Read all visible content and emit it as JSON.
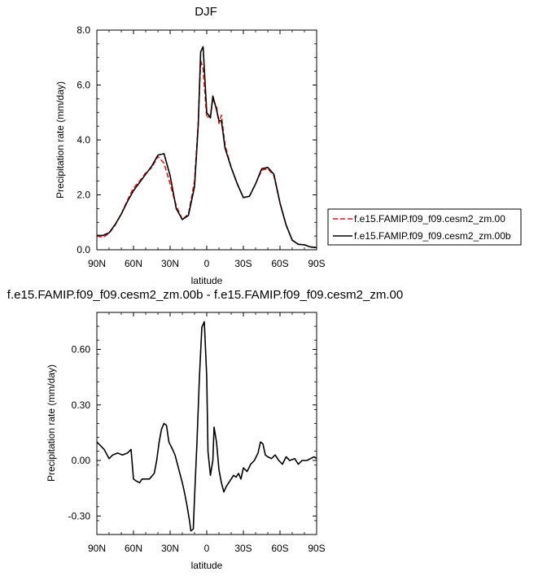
{
  "chart_data": [
    {
      "type": "line",
      "title": "DJF",
      "xlabel": "latitude",
      "ylabel": "Precipitation rate (mm/day)",
      "xlim": [
        90,
        -90
      ],
      "ylim": [
        0,
        8
      ],
      "xticks": [
        90,
        60,
        30,
        0,
        -30,
        -60,
        -90
      ],
      "xtick_labels": [
        "90N",
        "60N",
        "30N",
        "0",
        "30S",
        "60S",
        "90S"
      ],
      "yticks": [
        0,
        2,
        4,
        6,
        8
      ],
      "ytick_labels": [
        "0.0",
        "2.0",
        "4.0",
        "6.0",
        "8.0"
      ],
      "grid": false,
      "legend_position": "right",
      "series": [
        {
          "name": "f.e15.FAMIP.f09_f09.cesm2_zm.00",
          "color": "#e8141a",
          "dash": "dashed",
          "x": [
            90,
            85,
            80,
            75,
            70,
            65,
            60,
            55,
            50,
            45,
            40,
            35,
            30,
            25,
            20,
            15,
            10,
            7,
            5,
            3,
            0,
            -3,
            -5,
            -8,
            -10,
            -12,
            -15,
            -20,
            -25,
            -30,
            -35,
            -40,
            -45,
            -50,
            -55,
            -60,
            -65,
            -70,
            -75,
            -80,
            -85,
            -90
          ],
          "y": [
            0.5,
            0.45,
            0.6,
            0.9,
            1.3,
            1.8,
            2.25,
            2.5,
            2.8,
            3.0,
            3.4,
            3.15,
            2.4,
            1.6,
            1.1,
            1.3,
            2.5,
            4.6,
            6.9,
            6.6,
            4.8,
            4.9,
            5.5,
            5.2,
            4.6,
            4.9,
            3.8,
            3.0,
            2.4,
            1.9,
            1.95,
            2.4,
            2.9,
            2.95,
            2.7,
            1.7,
            0.9,
            0.35,
            0.2,
            0.18,
            0.1,
            0.08
          ]
        },
        {
          "name": "f.e15.FAMIP.f09_f09.cesm2_zm.00b",
          "color": "#000000",
          "dash": "solid",
          "x": [
            90,
            85,
            80,
            75,
            70,
            65,
            60,
            55,
            50,
            45,
            40,
            35,
            30,
            25,
            20,
            15,
            10,
            7,
            5,
            3,
            0,
            -3,
            -5,
            -8,
            -10,
            -12,
            -15,
            -20,
            -25,
            -30,
            -35,
            -40,
            -45,
            -50,
            -55,
            -60,
            -65,
            -70,
            -75,
            -80,
            -85,
            -90
          ],
          "y": [
            0.52,
            0.52,
            0.62,
            0.92,
            1.3,
            1.75,
            2.15,
            2.45,
            2.75,
            3.05,
            3.45,
            3.5,
            2.7,
            1.5,
            1.1,
            1.25,
            2.3,
            4.5,
            7.2,
            7.4,
            5.0,
            4.8,
            5.6,
            5.1,
            4.7,
            4.7,
            3.7,
            3.0,
            2.4,
            1.9,
            1.95,
            2.4,
            2.95,
            3.0,
            2.75,
            1.7,
            0.9,
            0.35,
            0.2,
            0.18,
            0.1,
            0.08
          ]
        }
      ]
    },
    {
      "type": "line",
      "title": "f.e15.FAMIP.f09_f09.cesm2_zm.00b - f.e15.FAMIP.f09_f09.cesm2_zm.00",
      "xlabel": "latitude",
      "ylabel": "Precipitation rate (mm/day)",
      "xlim": [
        90,
        -90
      ],
      "ylim": [
        -0.4,
        0.8
      ],
      "xticks": [
        90,
        60,
        30,
        0,
        -30,
        -60,
        -90
      ],
      "xtick_labels": [
        "90N",
        "60N",
        "30N",
        "0",
        "30S",
        "60S",
        "90S"
      ],
      "yticks": [
        -0.3,
        0,
        0.3,
        0.6
      ],
      "ytick_labels": [
        "-0.30",
        "0.00",
        "0.30",
        "0.60"
      ],
      "grid": false,
      "series": [
        {
          "color": "#000000",
          "dash": "solid",
          "x": [
            90,
            87,
            84,
            80,
            77,
            73,
            69,
            65,
            62,
            60,
            58,
            55,
            53,
            50,
            47,
            43,
            41,
            39,
            37,
            35,
            33,
            31,
            28,
            26,
            24,
            22,
            20,
            18,
            16,
            14,
            13,
            11,
            10,
            8,
            6,
            4,
            2,
            0,
            -1,
            -3,
            -5,
            -6,
            -8,
            -10,
            -12,
            -14,
            -16,
            -18,
            -20,
            -22,
            -24,
            -26,
            -28,
            -30,
            -33,
            -36,
            -39,
            -42,
            -44,
            -46,
            -48,
            -50,
            -53,
            -56,
            -59,
            -62,
            -65,
            -68,
            -72,
            -75,
            -78,
            -82,
            -85,
            -88,
            -90
          ],
          "y": [
            0.1,
            0.08,
            0.06,
            0.01,
            0.03,
            0.04,
            0.03,
            0.04,
            0.06,
            -0.1,
            -0.11,
            -0.12,
            -0.1,
            -0.1,
            -0.1,
            -0.07,
            0.0,
            0.1,
            0.17,
            0.2,
            0.19,
            0.1,
            0.06,
            0.03,
            -0.02,
            -0.07,
            -0.12,
            -0.18,
            -0.25,
            -0.33,
            -0.38,
            -0.37,
            -0.2,
            0.1,
            0.45,
            0.72,
            0.75,
            0.45,
            0.05,
            -0.08,
            0.0,
            0.18,
            0.1,
            -0.05,
            -0.12,
            -0.17,
            -0.14,
            -0.12,
            -0.1,
            -0.08,
            -0.09,
            -0.07,
            -0.1,
            -0.04,
            -0.06,
            -0.02,
            0.0,
            0.04,
            0.1,
            0.09,
            0.03,
            0.02,
            0.01,
            0.03,
            0.0,
            -0.02,
            0.02,
            0.0,
            0.01,
            -0.02,
            0.0,
            0.0,
            0.01,
            0.02,
            0.01
          ]
        }
      ]
    }
  ]
}
